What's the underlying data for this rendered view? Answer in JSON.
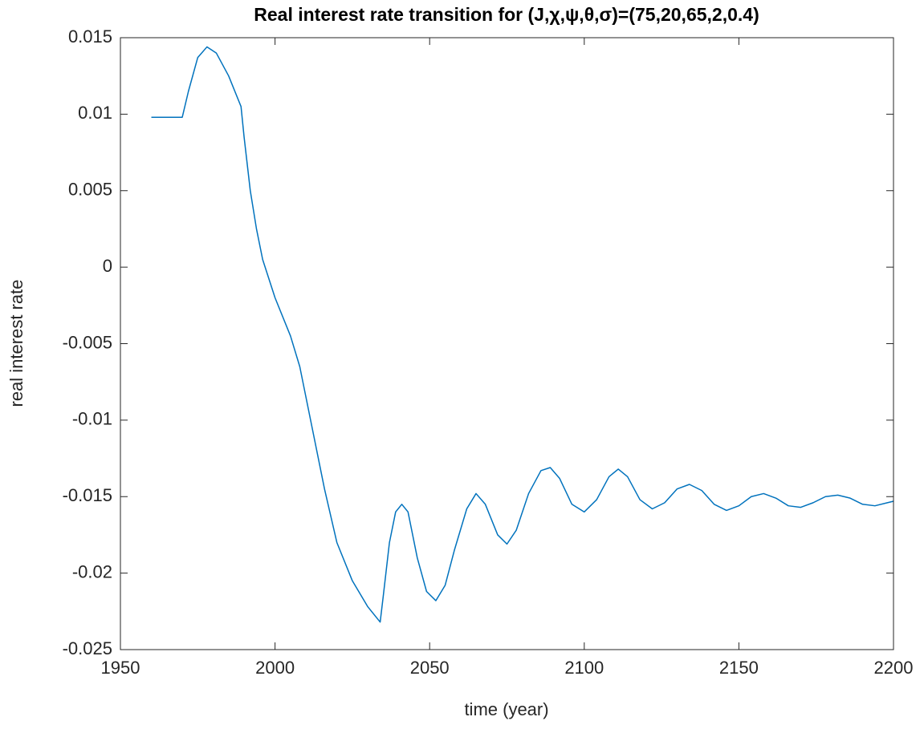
{
  "chart_data": {
    "type": "line",
    "title": "Real interest rate transition for (J,χ,ψ,θ,σ)=(75,20,65,2,0.4)",
    "x_label": "time (year)",
    "y_label": "real interest rate",
    "color": "#0072bd",
    "x": [
      1960,
      1970,
      1972,
      1975,
      1978,
      1981,
      1985,
      1989,
      1990,
      1992,
      1994,
      1996,
      2000,
      2005,
      2008,
      2012,
      2016,
      2020,
      2025,
      2030,
      2034,
      2035,
      2037,
      2039,
      2041,
      2043,
      2046,
      2049,
      2052,
      2055,
      2058,
      2062,
      2065,
      2068,
      2072,
      2075,
      2078,
      2082,
      2086,
      2089,
      2092,
      2096,
      2100,
      2104,
      2108,
      2111,
      2114,
      2118,
      2122,
      2126,
      2130,
      2134,
      2138,
      2142,
      2146,
      2150,
      2154,
      2158,
      2162,
      2166,
      2170,
      2174,
      2178,
      2182,
      2186,
      2190,
      2194,
      2198,
      2200
    ],
    "values": [
      0.0098,
      0.0098,
      0.0115,
      0.0137,
      0.0144,
      0.014,
      0.0125,
      0.0105,
      0.0085,
      0.005,
      0.0025,
      0.0005,
      -0.002,
      -0.0045,
      -0.0065,
      -0.0105,
      -0.0145,
      -0.018,
      -0.0205,
      -0.0222,
      -0.0232,
      -0.0215,
      -0.018,
      -0.016,
      -0.0155,
      -0.016,
      -0.019,
      -0.0212,
      -0.0218,
      -0.0208,
      -0.0185,
      -0.0158,
      -0.0148,
      -0.0155,
      -0.0175,
      -0.0181,
      -0.0172,
      -0.0148,
      -0.0133,
      -0.0131,
      -0.0138,
      -0.0155,
      -0.016,
      -0.0152,
      -0.0137,
      -0.0132,
      -0.0137,
      -0.0152,
      -0.0158,
      -0.0154,
      -0.0145,
      -0.0142,
      -0.0146,
      -0.0155,
      -0.0159,
      -0.0156,
      -0.015,
      -0.0148,
      -0.0151,
      -0.0156,
      -0.0157,
      -0.0154,
      -0.015,
      -0.0149,
      -0.0151,
      -0.0155,
      -0.0156,
      -0.0154,
      -0.0153
    ],
    "xlim": [
      1950,
      2200
    ],
    "ylim": [
      -0.025,
      0.015
    ],
    "xticks": [
      1950,
      2000,
      2050,
      2100,
      2150,
      2200
    ],
    "yticks": [
      -0.025,
      -0.02,
      -0.015,
      -0.01,
      -0.005,
      0,
      0.005,
      0.01,
      0.015
    ],
    "grid": false
  }
}
